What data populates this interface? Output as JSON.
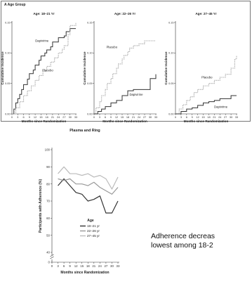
{
  "section_label": "A Age Group",
  "caption_lines": [
    "Adherence decreas",
    "lowest among 18-2"
  ],
  "colors": {
    "dapivirine": "#333333",
    "placebo": "#aaaaaa",
    "age_18_21": "#333333",
    "age_22_26": "#999999",
    "age_27_45": "#bbbbbb"
  },
  "chart_data": [
    {
      "type": "line",
      "title": "Age: 18–21 Yr",
      "xlabel": "Months since Randomization",
      "ylabel": "Cumulative Incidence",
      "xlim": [
        0,
        33
      ],
      "ylim": [
        0,
        0.15
      ],
      "x_ticks": [
        0,
        3,
        6,
        9,
        12,
        15,
        18,
        21,
        24,
        27,
        30,
        33
      ],
      "y_ticks": [
        0.0,
        0.05,
        0.1,
        0.15
      ],
      "y_tick_labels": [
        "0.00",
        "0.05",
        "0.10",
        "0.15"
      ],
      "step": true,
      "series": [
        {
          "name": "Dapivirine",
          "style": "solid",
          "x": [
            0,
            1,
            2,
            3,
            4,
            5,
            6,
            8,
            9,
            11,
            12,
            14,
            15,
            17,
            18,
            20,
            21,
            24,
            27,
            28,
            30,
            33
          ],
          "y": [
            0,
            0.008,
            0.018,
            0.025,
            0.032,
            0.04,
            0.048,
            0.057,
            0.066,
            0.072,
            0.08,
            0.088,
            0.095,
            0.1,
            0.105,
            0.11,
            0.118,
            0.125,
            0.128,
            0.135,
            0.14,
            0.14
          ]
        },
        {
          "name": "Placebo",
          "style": "dotted",
          "x": [
            0,
            2,
            4,
            6,
            8,
            10,
            12,
            14,
            16,
            18,
            20,
            22,
            24,
            26,
            27,
            29,
            30,
            33
          ],
          "y": [
            0,
            0.01,
            0.02,
            0.03,
            0.038,
            0.046,
            0.055,
            0.063,
            0.07,
            0.078,
            0.085,
            0.092,
            0.1,
            0.106,
            0.112,
            0.13,
            0.145,
            0.15
          ]
        }
      ],
      "labels": [
        {
          "text": "Dapivirine",
          "x": 15.5,
          "y": 0.118
        },
        {
          "text": "Placebo",
          "x": 18.5,
          "y": 0.07
        }
      ]
    },
    {
      "type": "line",
      "title": "Age: 22–26 Yr",
      "xlabel": "Months since Randomization",
      "ylabel": "Cumulative Incidence",
      "xlim": [
        0,
        33
      ],
      "ylim": [
        0,
        0.15
      ],
      "x_ticks": [
        0,
        3,
        6,
        9,
        12,
        15,
        18,
        21,
        24,
        27,
        30,
        33
      ],
      "y_ticks": [
        0.0,
        0.05,
        0.1,
        0.15
      ],
      "y_tick_labels": [
        "0.00",
        "0.05",
        "0.10",
        "0.15"
      ],
      "step": true,
      "series": [
        {
          "name": "Placebo",
          "style": "dotted",
          "x": [
            0,
            1,
            3,
            4,
            6,
            7,
            9,
            10,
            12,
            13,
            15,
            16,
            18,
            19,
            21,
            24,
            27,
            30,
            33
          ],
          "y": [
            0,
            0.01,
            0.02,
            0.03,
            0.04,
            0.05,
            0.058,
            0.066,
            0.075,
            0.082,
            0.09,
            0.096,
            0.102,
            0.108,
            0.112,
            0.115,
            0.12,
            0.12,
            0.12
          ]
        },
        {
          "name": "Dapivirine",
          "style": "solid",
          "x": [
            0,
            2,
            4,
            6,
            9,
            12,
            15,
            18,
            21,
            24,
            27,
            30,
            33
          ],
          "y": [
            0,
            0.004,
            0.008,
            0.012,
            0.018,
            0.022,
            0.03,
            0.038,
            0.04,
            0.04,
            0.04,
            0.058,
            0.065
          ]
        }
      ],
      "labels": [
        {
          "text": "Placebo",
          "x": 9.5,
          "y": 0.108
        },
        {
          "text": "Dapivirine",
          "x": 22.5,
          "y": 0.03
        }
      ]
    },
    {
      "type": "line",
      "title": "Age: 27–45 Yr",
      "xlabel": "Months since Randomization",
      "ylabel": "Cumulative Incidence",
      "xlim": [
        0,
        33
      ],
      "ylim": [
        0,
        0.15
      ],
      "x_ticks": [
        0,
        3,
        6,
        9,
        12,
        15,
        18,
        21,
        24,
        27,
        30,
        33
      ],
      "y_ticks": [
        0.0,
        0.05,
        0.1,
        0.15
      ],
      "y_tick_labels": [
        "0.00",
        "0.05",
        "0.10",
        "0.15"
      ],
      "step": true,
      "series": [
        {
          "name": "Placebo",
          "style": "dotted",
          "x": [
            0,
            2,
            4,
            6,
            8,
            10,
            12,
            15,
            18,
            21,
            24,
            27,
            30,
            32,
            33
          ],
          "y": [
            0,
            0.008,
            0.015,
            0.022,
            0.028,
            0.035,
            0.04,
            0.046,
            0.05,
            0.055,
            0.06,
            0.065,
            0.075,
            0.09,
            0.095
          ]
        },
        {
          "name": "Dapivirine",
          "style": "solid",
          "x": [
            0,
            3,
            6,
            9,
            12,
            15,
            18,
            21,
            24,
            27,
            30,
            33
          ],
          "y": [
            0,
            0.004,
            0.008,
            0.01,
            0.014,
            0.018,
            0.02,
            0.022,
            0.025,
            0.025,
            0.03,
            0.03
          ]
        }
      ],
      "labels": [
        {
          "text": "Placebo",
          "x": 17,
          "y": 0.058
        },
        {
          "text": "Dapivirine",
          "x": 24.5,
          "y": 0.01
        }
      ]
    },
    {
      "type": "line",
      "title": "Plasma and Ring",
      "xlabel": "Months since Randomization",
      "ylabel": "Participants with Adherence (%)",
      "xlim": [
        0,
        33
      ],
      "ylim": [
        0,
        100
      ],
      "x_ticks": [
        0,
        3,
        6,
        9,
        12,
        15,
        18,
        21,
        24,
        27,
        30,
        33
      ],
      "y_ticks": [
        0,
        40,
        50,
        60,
        70,
        80,
        90,
        100
      ],
      "y_tick_labels": [
        "0",
        "40",
        "50",
        "60",
        "70",
        "80",
        "90",
        "100"
      ],
      "axis_break": true,
      "legend_title": "Age",
      "legend_position": "bottom-right",
      "series": [
        {
          "name": "18–21 yr",
          "color": "#333333",
          "x": [
            3,
            6,
            9,
            12,
            15,
            18,
            21,
            24,
            27,
            30,
            33
          ],
          "y": [
            79,
            83,
            79,
            75,
            74,
            70,
            71,
            73,
            63,
            63,
            70
          ]
        },
        {
          "name": "22–26 yr",
          "color": "#999999",
          "x": [
            3,
            6,
            9,
            12,
            15,
            18,
            21,
            24,
            27,
            30,
            33
          ],
          "y": [
            83,
            82,
            83,
            80,
            80,
            79,
            81,
            78,
            76,
            74,
            78
          ]
        },
        {
          "name": "27–45 yr",
          "color": "#bbbbbb",
          "x": [
            3,
            6,
            9,
            12,
            15,
            18,
            21,
            24,
            27,
            30,
            33
          ],
          "y": [
            86,
            90,
            86,
            86,
            85,
            86,
            84,
            85,
            83,
            77,
            84
          ]
        }
      ]
    }
  ]
}
